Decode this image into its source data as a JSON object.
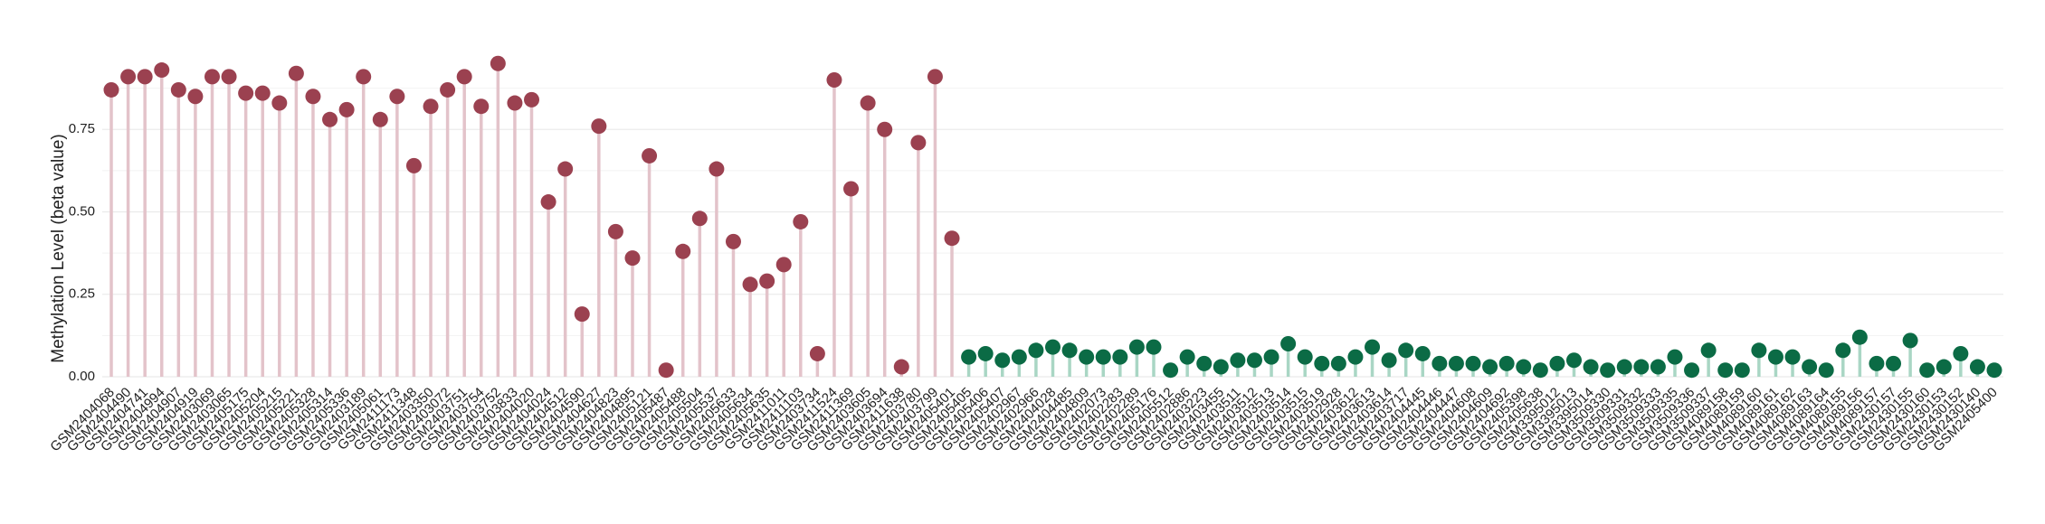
{
  "chart_data": {
    "type": "lollipop",
    "y_label": "Methylation Level (beta value)",
    "categories": [
      "GSM2404068",
      "GSM2404490",
      "GSM2404741",
      "GSM2404994",
      "GSM2404907",
      "GSM2404919",
      "GSM2403069",
      "GSM2403065",
      "GSM2405175",
      "GSM2405204",
      "GSM2405215",
      "GSM2405221",
      "GSM2405328",
      "GSM2405314",
      "GSM2405336",
      "GSM2403189",
      "GSM2405061",
      "GSM2411173",
      "GSM2411348",
      "GSM2403350",
      "GSM2403072",
      "GSM2403751",
      "GSM2403754",
      "GSM2403752",
      "GSM2403833",
      "GSM2404020",
      "GSM2404024",
      "GSM2404512",
      "GSM2404590",
      "GSM2404627",
      "GSM2404823",
      "GSM2404895",
      "GSM2405121",
      "GSM2405487",
      "GSM2405488",
      "GSM2405504",
      "GSM2405537",
      "GSM2405633",
      "GSM2405634",
      "GSM2405635",
      "GSM2411011",
      "GSM2411103",
      "GSM2403734",
      "GSM2411524",
      "GSM2411369",
      "GSM2403605",
      "GSM2403694",
      "GSM2411638",
      "GSM2403780",
      "GSM2403799",
      "GSM2405401",
      "GSM2405405",
      "GSM2405406",
      "GSM2405407",
      "GSM2402967",
      "GSM2402966",
      "GSM2404028",
      "GSM2404485",
      "GSM2404809",
      "GSM2402073",
      "GSM2402283",
      "GSM2402289",
      "GSM2405176",
      "GSM2405512",
      "GSM2402886",
      "GSM2403223",
      "GSM2403455",
      "GSM2403511",
      "GSM2403512",
      "GSM2403513",
      "GSM2403514",
      "GSM2403515",
      "GSM2403519",
      "GSM2402928",
      "GSM2403612",
      "GSM2403613",
      "GSM2403614",
      "GSM2403717",
      "GSM2404445",
      "GSM2404446",
      "GSM2404447",
      "GSM2404608",
      "GSM2404609",
      "GSM2404692",
      "GSM2405398",
      "GSM2405638",
      "GSM3395012",
      "GSM3395013",
      "GSM3395014",
      "GSM3509330",
      "GSM3509331",
      "GSM3509332",
      "GSM3509333",
      "GSM3509335",
      "GSM3509336",
      "GSM3509337",
      "GSM4089158",
      "GSM4089159",
      "GSM4089160",
      "GSM4089161",
      "GSM4089162",
      "GSM4089163",
      "GSM4089164",
      "GSM4089155",
      "GSM4089156",
      "GSM4089157",
      "GSM2430157",
      "GSM2430155",
      "GSM2430160",
      "GSM2430153",
      "GSM2430152",
      "GSM2430140",
      "GSM2405400"
    ],
    "series": [
      {
        "color": "#9b4150",
        "stem_color": "#e3c3ca",
        "values": [
          0.87,
          0.91,
          0.91,
          0.93,
          0.87,
          0.85,
          0.91,
          0.91,
          0.86,
          0.86,
          0.83,
          0.92,
          0.85,
          0.78,
          0.81,
          0.91,
          0.78,
          0.85,
          0.64,
          0.82,
          0.87,
          0.91,
          0.82,
          0.95,
          0.83,
          0.84,
          0.53,
          0.63,
          0.19,
          0.76,
          0.44,
          0.36,
          0.67,
          0.02,
          0.38,
          0.48,
          0.63,
          0.41,
          0.28,
          0.29,
          0.34,
          0.47,
          0.07,
          0.9,
          0.57,
          0.83,
          0.75,
          0.03,
          0.71,
          0.91,
          0.42,
          null,
          null,
          null,
          null,
          null,
          null,
          null,
          null,
          null,
          null,
          null,
          null,
          null,
          null,
          null,
          null,
          null,
          null,
          null,
          null,
          null,
          null,
          null,
          null,
          null,
          null,
          null,
          null,
          null,
          null,
          null,
          null,
          null,
          null,
          null,
          null,
          null,
          null,
          null,
          null,
          null,
          null,
          null,
          null,
          null,
          null,
          null,
          null,
          null,
          null,
          null,
          null,
          null,
          null,
          null,
          null,
          null,
          null,
          null,
          null,
          null,
          null
        ]
      },
      {
        "color": "#0b6b45",
        "stem_color": "#a9d6c4",
        "values": [
          null,
          null,
          null,
          null,
          null,
          null,
          null,
          null,
          null,
          null,
          null,
          null,
          null,
          null,
          null,
          null,
          null,
          null,
          null,
          null,
          null,
          null,
          null,
          null,
          null,
          null,
          null,
          null,
          null,
          null,
          null,
          null,
          null,
          null,
          null,
          null,
          null,
          null,
          null,
          null,
          null,
          null,
          null,
          null,
          null,
          null,
          null,
          null,
          null,
          null,
          null,
          0.06,
          0.07,
          0.05,
          0.06,
          0.08,
          0.09,
          0.08,
          0.06,
          0.06,
          0.06,
          0.09,
          0.09,
          0.02,
          0.06,
          0.04,
          0.03,
          0.05,
          0.05,
          0.06,
          0.1,
          0.06,
          0.04,
          0.04,
          0.06,
          0.09,
          0.05,
          0.08,
          0.07,
          0.04,
          0.04,
          0.04,
          0.03,
          0.04,
          0.03,
          0.02,
          0.04,
          0.05,
          0.03,
          0.02,
          0.03,
          0.03,
          0.03,
          0.06,
          0.02,
          0.08,
          0.02,
          0.02,
          0.08,
          0.06,
          0.06,
          0.03,
          0.02,
          0.08,
          0.12,
          0.04,
          0.04,
          0.11,
          0.02,
          0.03,
          0.07,
          0.03,
          0.02
        ]
      }
    ],
    "ylim": [
      0,
      1
    ],
    "yticks": [
      {
        "value": 0,
        "label": "0.00"
      },
      {
        "value": 0.25,
        "label": "0.25"
      },
      {
        "value": 0.5,
        "label": "0.50"
      },
      {
        "value": 0.75,
        "label": "0.75"
      }
    ],
    "minor_yticks": [
      0.125,
      0.375,
      0.625,
      0.875
    ],
    "grid": true
  }
}
